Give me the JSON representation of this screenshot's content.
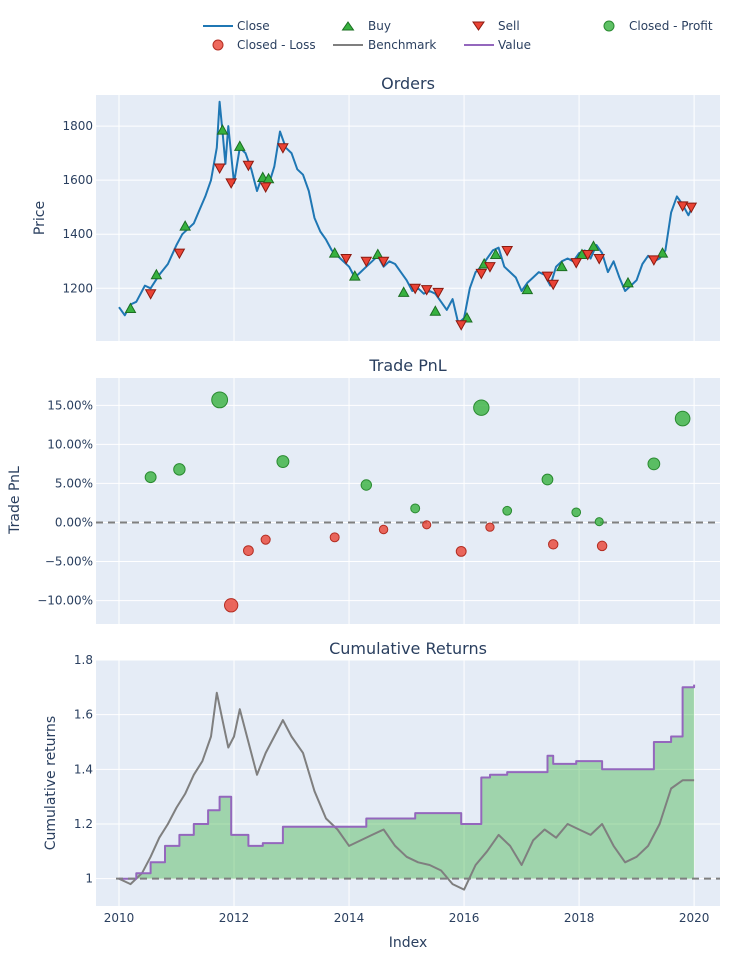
{
  "colors": {
    "plot_bg": "#E5ECF6",
    "grid": "#ffffff",
    "close": "#1f77b4",
    "buy": "#37B13F",
    "sell": "#EA4335",
    "profit": "#37B13F",
    "loss": "#EA4335",
    "benchmark": "#7f7f7f",
    "value": "#9467bd",
    "fill": "#37B13F",
    "dash": "#7f7f7f"
  },
  "legend": {
    "close": "Close",
    "buy": "Buy",
    "sell": "Sell",
    "closed_profit": "Closed - Profit",
    "closed_loss": "Closed - Loss",
    "benchmark": "Benchmark",
    "value": "Value"
  },
  "xlabel": "Index",
  "chart_data": [
    {
      "type": "line",
      "title": "Orders",
      "ylabel": "Price",
      "xlim": [
        2009.6,
        2020.45
      ],
      "ylim": [
        1005,
        1915
      ],
      "xticks": [
        2010,
        2012,
        2014,
        2016,
        2018,
        2020
      ],
      "yticks": [
        1200,
        1400,
        1600,
        1800
      ],
      "ytick_labels": [
        "1200",
        "1400",
        "1600",
        "1800"
      ],
      "series": [
        {
          "name": "Close",
          "x": [
            2010.0,
            2010.1,
            2010.2,
            2010.3,
            2010.45,
            2010.55,
            2010.7,
            2010.85,
            2011.0,
            2011.1,
            2011.2,
            2011.3,
            2011.4,
            2011.5,
            2011.6,
            2011.7,
            2011.75,
            2011.8,
            2011.85,
            2011.9,
            2012.0,
            2012.1,
            2012.2,
            2012.3,
            2012.4,
            2012.5,
            2012.6,
            2012.7,
            2012.8,
            2012.9,
            2013.0,
            2013.1,
            2013.2,
            2013.3,
            2013.4,
            2013.5,
            2013.6,
            2013.7,
            2013.8,
            2013.9,
            2014.0,
            2014.1,
            2014.2,
            2014.3,
            2014.4,
            2014.5,
            2014.6,
            2014.7,
            2014.8,
            2014.9,
            2015.0,
            2015.1,
            2015.2,
            2015.3,
            2015.4,
            2015.5,
            2015.6,
            2015.7,
            2015.8,
            2015.9,
            2016.0,
            2016.1,
            2016.2,
            2016.3,
            2016.4,
            2016.5,
            2016.6,
            2016.7,
            2016.8,
            2016.9,
            2017.0,
            2017.1,
            2017.2,
            2017.3,
            2017.4,
            2017.5,
            2017.6,
            2017.7,
            2017.8,
            2017.9,
            2018.0,
            2018.1,
            2018.2,
            2018.3,
            2018.4,
            2018.5,
            2018.6,
            2018.7,
            2018.8,
            2018.9,
            2019.0,
            2019.1,
            2019.2,
            2019.3,
            2019.4,
            2019.5,
            2019.6,
            2019.7,
            2019.8,
            2019.9,
            2020.0
          ],
          "values": [
            1130,
            1100,
            1140,
            1150,
            1210,
            1200,
            1250,
            1290,
            1360,
            1400,
            1420,
            1440,
            1490,
            1540,
            1600,
            1720,
            1890,
            1780,
            1660,
            1800,
            1590,
            1720,
            1700,
            1640,
            1560,
            1620,
            1580,
            1650,
            1780,
            1720,
            1700,
            1640,
            1620,
            1560,
            1460,
            1410,
            1380,
            1340,
            1320,
            1300,
            1280,
            1240,
            1260,
            1280,
            1300,
            1320,
            1280,
            1300,
            1290,
            1260,
            1230,
            1190,
            1200,
            1180,
            1190,
            1180,
            1150,
            1120,
            1160,
            1070,
            1090,
            1200,
            1260,
            1280,
            1310,
            1340,
            1350,
            1280,
            1260,
            1240,
            1190,
            1220,
            1240,
            1260,
            1250,
            1210,
            1280,
            1300,
            1310,
            1300,
            1330,
            1340,
            1310,
            1360,
            1330,
            1260,
            1300,
            1240,
            1190,
            1210,
            1230,
            1290,
            1320,
            1300,
            1310,
            1340,
            1480,
            1540,
            1510,
            1470,
            1515
          ]
        },
        {
          "name": "Buy",
          "marker": "triangle-up",
          "x": [
            2010.2,
            2010.65,
            2011.15,
            2011.8,
            2012.1,
            2012.5,
            2012.6,
            2013.75,
            2014.1,
            2014.5,
            2014.95,
            2015.5,
            2016.05,
            2016.35,
            2016.55,
            2017.1,
            2017.7,
            2018.05,
            2018.25,
            2018.85,
            2019.45
          ],
          "values": [
            1125,
            1250,
            1430,
            1785,
            1725,
            1610,
            1605,
            1330,
            1245,
            1325,
            1185,
            1115,
            1090,
            1290,
            1325,
            1195,
            1280,
            1325,
            1355,
            1220,
            1330
          ]
        },
        {
          "name": "Sell",
          "marker": "triangle-down",
          "x": [
            2010.55,
            2011.05,
            2011.75,
            2011.95,
            2012.25,
            2012.55,
            2012.85,
            2013.95,
            2014.3,
            2014.6,
            2015.15,
            2015.35,
            2015.55,
            2015.95,
            2016.3,
            2016.45,
            2016.75,
            2017.45,
            2017.55,
            2017.95,
            2018.15,
            2018.35,
            2019.3,
            2019.8,
            2019.95
          ],
          "values": [
            1180,
            1330,
            1645,
            1590,
            1655,
            1575,
            1720,
            1310,
            1300,
            1300,
            1200,
            1195,
            1185,
            1065,
            1255,
            1280,
            1340,
            1245,
            1215,
            1295,
            1325,
            1310,
            1305,
            1505,
            1500
          ]
        }
      ]
    },
    {
      "type": "scatter",
      "title": "Trade PnL",
      "ylabel": "Trade PnL",
      "xlim": [
        2009.6,
        2020.45
      ],
      "ylim": [
        -13.0,
        18.5
      ],
      "xticks": [
        2010,
        2012,
        2014,
        2016,
        2018,
        2020
      ],
      "yticks": [
        -10,
        -5,
        0,
        5,
        10,
        15
      ],
      "ytick_labels": [
        "−10.00%",
        "−5.00%",
        "0.00%",
        "5.00%",
        "10.00%",
        "15.00%"
      ],
      "series": [
        {
          "name": "Closed - Profit",
          "x": [
            2010.55,
            2011.05,
            2011.75,
            2012.85,
            2014.3,
            2015.15,
            2016.3,
            2016.75,
            2017.45,
            2017.95,
            2018.35,
            2019.3,
            2019.8
          ],
          "values": [
            5.8,
            6.8,
            15.7,
            7.8,
            4.8,
            1.8,
            14.7,
            1.5,
            5.5,
            1.3,
            0.1,
            7.5,
            13.3
          ]
        },
        {
          "name": "Closed - Loss",
          "x": [
            2011.95,
            2012.25,
            2012.55,
            2013.75,
            2014.6,
            2015.35,
            2015.95,
            2016.45,
            2017.55,
            2018.4
          ],
          "values": [
            -10.6,
            -3.6,
            -2.2,
            -1.9,
            -0.9,
            -0.3,
            -3.7,
            -0.6,
            -2.8,
            -3.0
          ]
        }
      ]
    },
    {
      "type": "area",
      "title": "Cumulative Returns",
      "ylabel": "Cumulative returns",
      "xlim": [
        2009.6,
        2020.45
      ],
      "ylim": [
        0.9,
        1.8
      ],
      "xticks": [
        2010,
        2012,
        2014,
        2016,
        2018,
        2020
      ],
      "xtick_labels": [
        "2010",
        "2012",
        "2014",
        "2016",
        "2018",
        "2020"
      ],
      "yticks": [
        1.0,
        1.2,
        1.4,
        1.6,
        1.8
      ],
      "ytick_labels": [
        "1",
        "1.2",
        "1.4",
        "1.6",
        "1.8"
      ],
      "series": [
        {
          "name": "Benchmark",
          "x": [
            2010.0,
            2010.2,
            2010.4,
            2010.55,
            2010.7,
            2010.85,
            2011.0,
            2011.15,
            2011.3,
            2011.45,
            2011.6,
            2011.7,
            2011.8,
            2011.9,
            2012.0,
            2012.1,
            2012.25,
            2012.4,
            2012.55,
            2012.7,
            2012.85,
            2013.0,
            2013.2,
            2013.4,
            2013.6,
            2013.8,
            2014.0,
            2014.2,
            2014.4,
            2014.6,
            2014.8,
            2015.0,
            2015.2,
            2015.4,
            2015.6,
            2015.8,
            2016.0,
            2016.2,
            2016.4,
            2016.6,
            2016.8,
            2017.0,
            2017.2,
            2017.4,
            2017.6,
            2017.8,
            2018.0,
            2018.2,
            2018.4,
            2018.6,
            2018.8,
            2019.0,
            2019.2,
            2019.4,
            2019.6,
            2019.8,
            2020.0
          ],
          "values": [
            1.0,
            0.98,
            1.02,
            1.08,
            1.15,
            1.2,
            1.26,
            1.31,
            1.38,
            1.43,
            1.52,
            1.68,
            1.58,
            1.48,
            1.52,
            1.62,
            1.5,
            1.38,
            1.46,
            1.52,
            1.58,
            1.52,
            1.46,
            1.32,
            1.22,
            1.18,
            1.12,
            1.14,
            1.16,
            1.18,
            1.12,
            1.08,
            1.06,
            1.05,
            1.03,
            0.98,
            0.96,
            1.05,
            1.1,
            1.16,
            1.12,
            1.05,
            1.14,
            1.18,
            1.15,
            1.2,
            1.18,
            1.16,
            1.2,
            1.12,
            1.06,
            1.08,
            1.12,
            1.2,
            1.33,
            1.36,
            1.36
          ]
        },
        {
          "name": "Value",
          "x": [
            2010.0,
            2010.3,
            2010.55,
            2010.8,
            2011.05,
            2011.3,
            2011.55,
            2011.75,
            2011.95,
            2012.25,
            2012.5,
            2012.85,
            2013.4,
            2013.75,
            2014.3,
            2014.6,
            2015.15,
            2015.35,
            2015.95,
            2016.3,
            2016.45,
            2016.75,
            2017.45,
            2017.55,
            2017.95,
            2018.15,
            2018.4,
            2018.85,
            2019.3,
            2019.6,
            2019.8,
            2020.0
          ],
          "values": [
            1.0,
            1.02,
            1.06,
            1.12,
            1.16,
            1.2,
            1.25,
            1.3,
            1.16,
            1.12,
            1.13,
            1.19,
            1.19,
            1.19,
            1.22,
            1.22,
            1.24,
            1.24,
            1.2,
            1.37,
            1.38,
            1.39,
            1.45,
            1.42,
            1.43,
            1.43,
            1.4,
            1.4,
            1.5,
            1.52,
            1.7,
            1.71
          ]
        }
      ]
    }
  ]
}
